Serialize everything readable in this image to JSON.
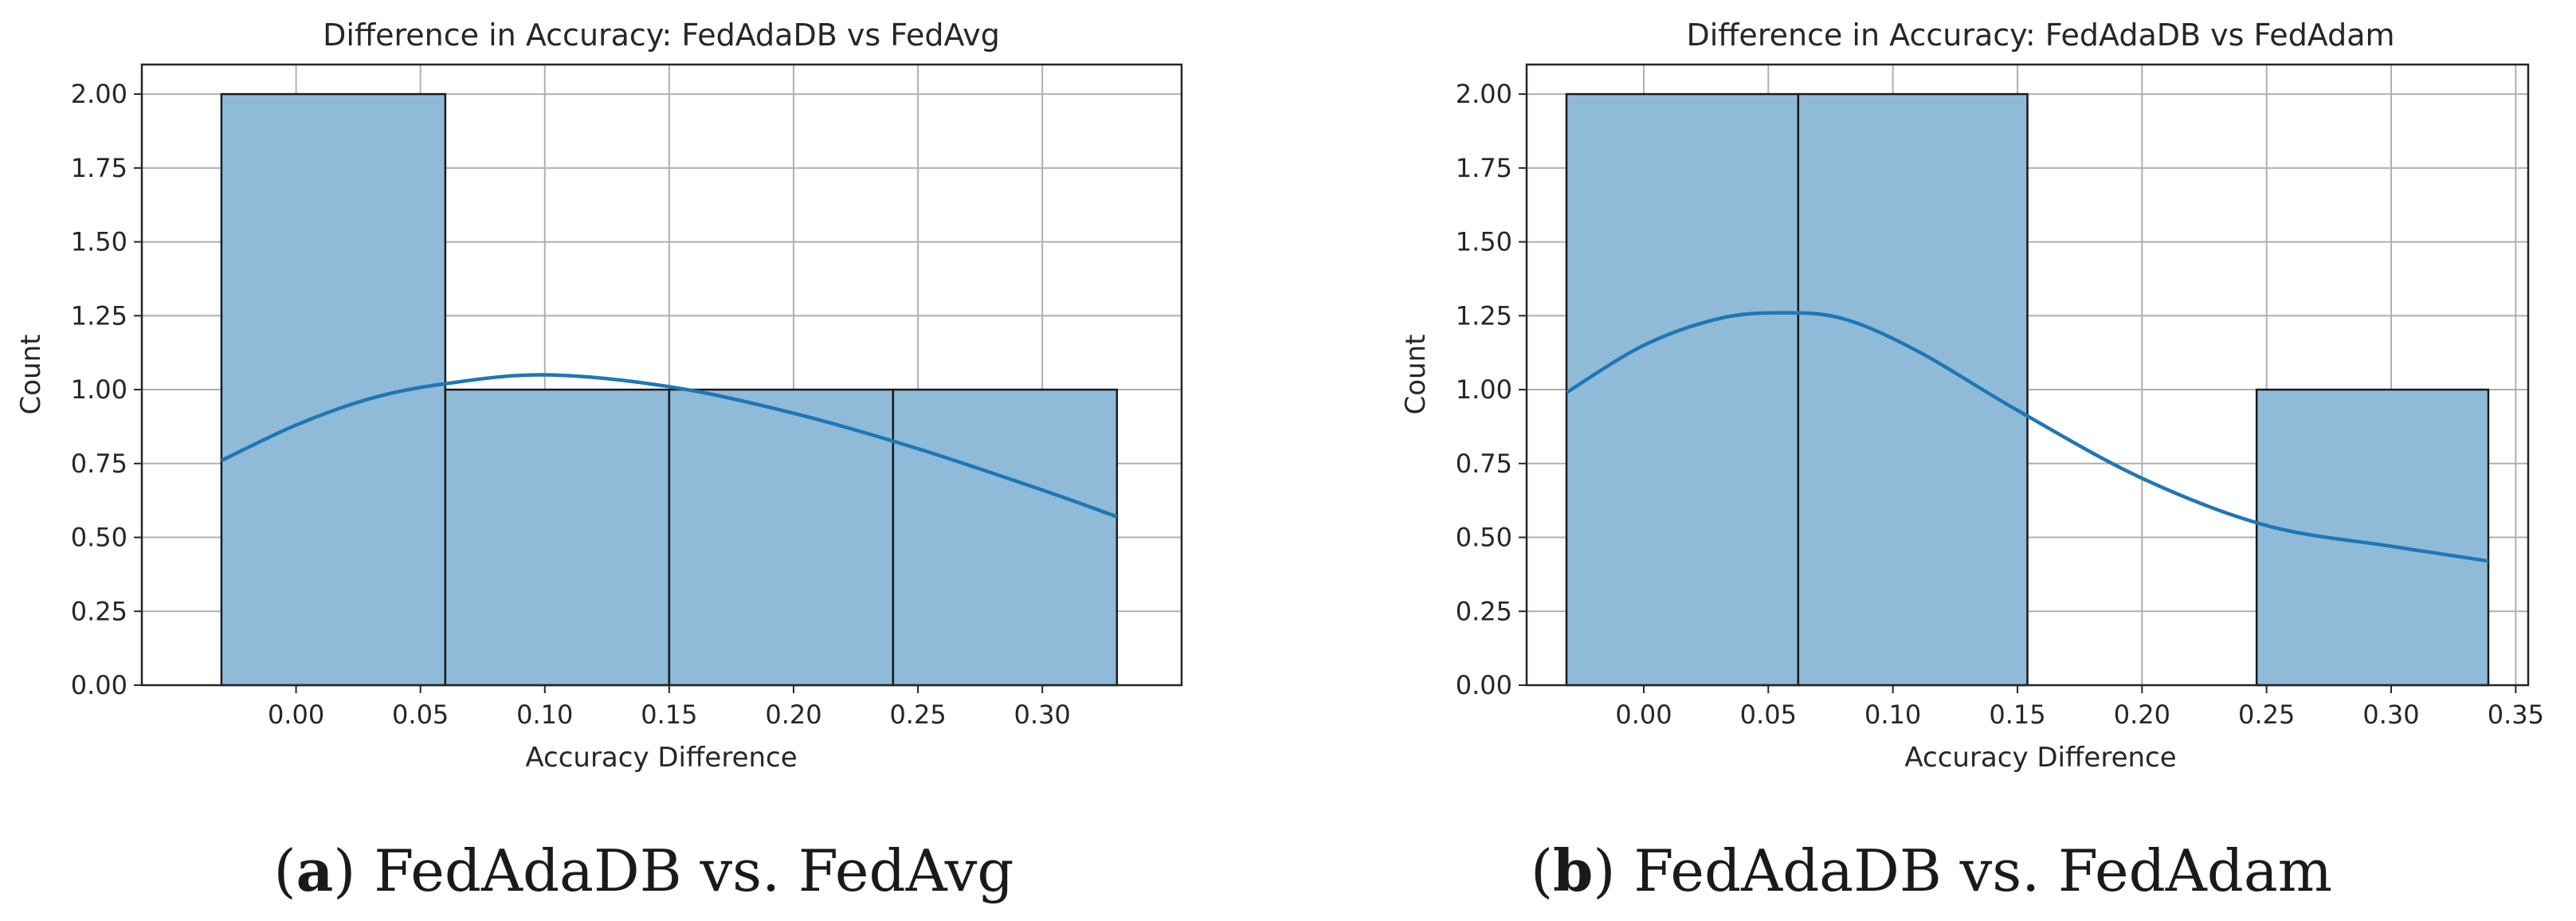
{
  "colors": {
    "bar_fill": "#8fbbd9",
    "kde_line": "#1f77b4",
    "grid": "#b0b0b0"
  },
  "chart_data": [
    {
      "type": "bar",
      "title": "Difference in Accuracy: FedAdaDB vs FedAvg",
      "xlabel": "Accuracy Difference",
      "ylabel": "Count",
      "xlim": [
        -0.062,
        0.356
      ],
      "ylim": [
        0,
        2.1
      ],
      "xticks": [
        "0.00",
        "0.05",
        "0.10",
        "0.15",
        "0.20",
        "0.25",
        "0.30"
      ],
      "yticks": [
        "0.00",
        "0.25",
        "0.50",
        "0.75",
        "1.00",
        "1.25",
        "1.50",
        "1.75",
        "2.00"
      ],
      "bins": [
        {
          "start": -0.03,
          "end": 0.06,
          "count": 2
        },
        {
          "start": 0.06,
          "end": 0.15,
          "count": 1
        },
        {
          "start": 0.15,
          "end": 0.24,
          "count": 1
        },
        {
          "start": 0.24,
          "end": 0.33,
          "count": 1
        }
      ],
      "kde": {
        "x": [
          -0.03,
          0.0,
          0.03,
          0.06,
          0.1,
          0.15,
          0.2,
          0.25,
          0.3,
          0.33
        ],
        "y": [
          0.76,
          0.88,
          0.97,
          1.02,
          1.05,
          1.01,
          0.92,
          0.8,
          0.66,
          0.57
        ]
      },
      "caption": {
        "letter": "a",
        "text": "FedAdaDB vs. FedAvg"
      }
    },
    {
      "type": "bar",
      "title": "Difference in Accuracy: FedAdaDB vs FedAdam",
      "xlabel": "Accuracy Difference",
      "ylabel": "Count",
      "xlim": [
        -0.047,
        0.355
      ],
      "ylim": [
        0,
        2.1
      ],
      "xticks": [
        "0.00",
        "0.05",
        "0.10",
        "0.15",
        "0.20",
        "0.25",
        "0.30",
        "0.35"
      ],
      "yticks": [
        "0.00",
        "0.25",
        "0.50",
        "0.75",
        "1.00",
        "1.25",
        "1.50",
        "1.75",
        "2.00"
      ],
      "bins": [
        {
          "start": -0.031,
          "end": 0.062,
          "count": 2
        },
        {
          "start": 0.062,
          "end": 0.154,
          "count": 2
        },
        {
          "start": 0.154,
          "end": 0.246,
          "count": 0
        },
        {
          "start": 0.246,
          "end": 0.339,
          "count": 1
        }
      ],
      "kde": {
        "x": [
          -0.031,
          0.0,
          0.03,
          0.055,
          0.08,
          0.11,
          0.15,
          0.2,
          0.25,
          0.3,
          0.339
        ],
        "y": [
          0.99,
          1.15,
          1.24,
          1.26,
          1.24,
          1.13,
          0.93,
          0.7,
          0.54,
          0.47,
          0.42
        ]
      },
      "caption": {
        "letter": "b",
        "text": "FedAdaDB vs. FedAdam"
      }
    }
  ]
}
